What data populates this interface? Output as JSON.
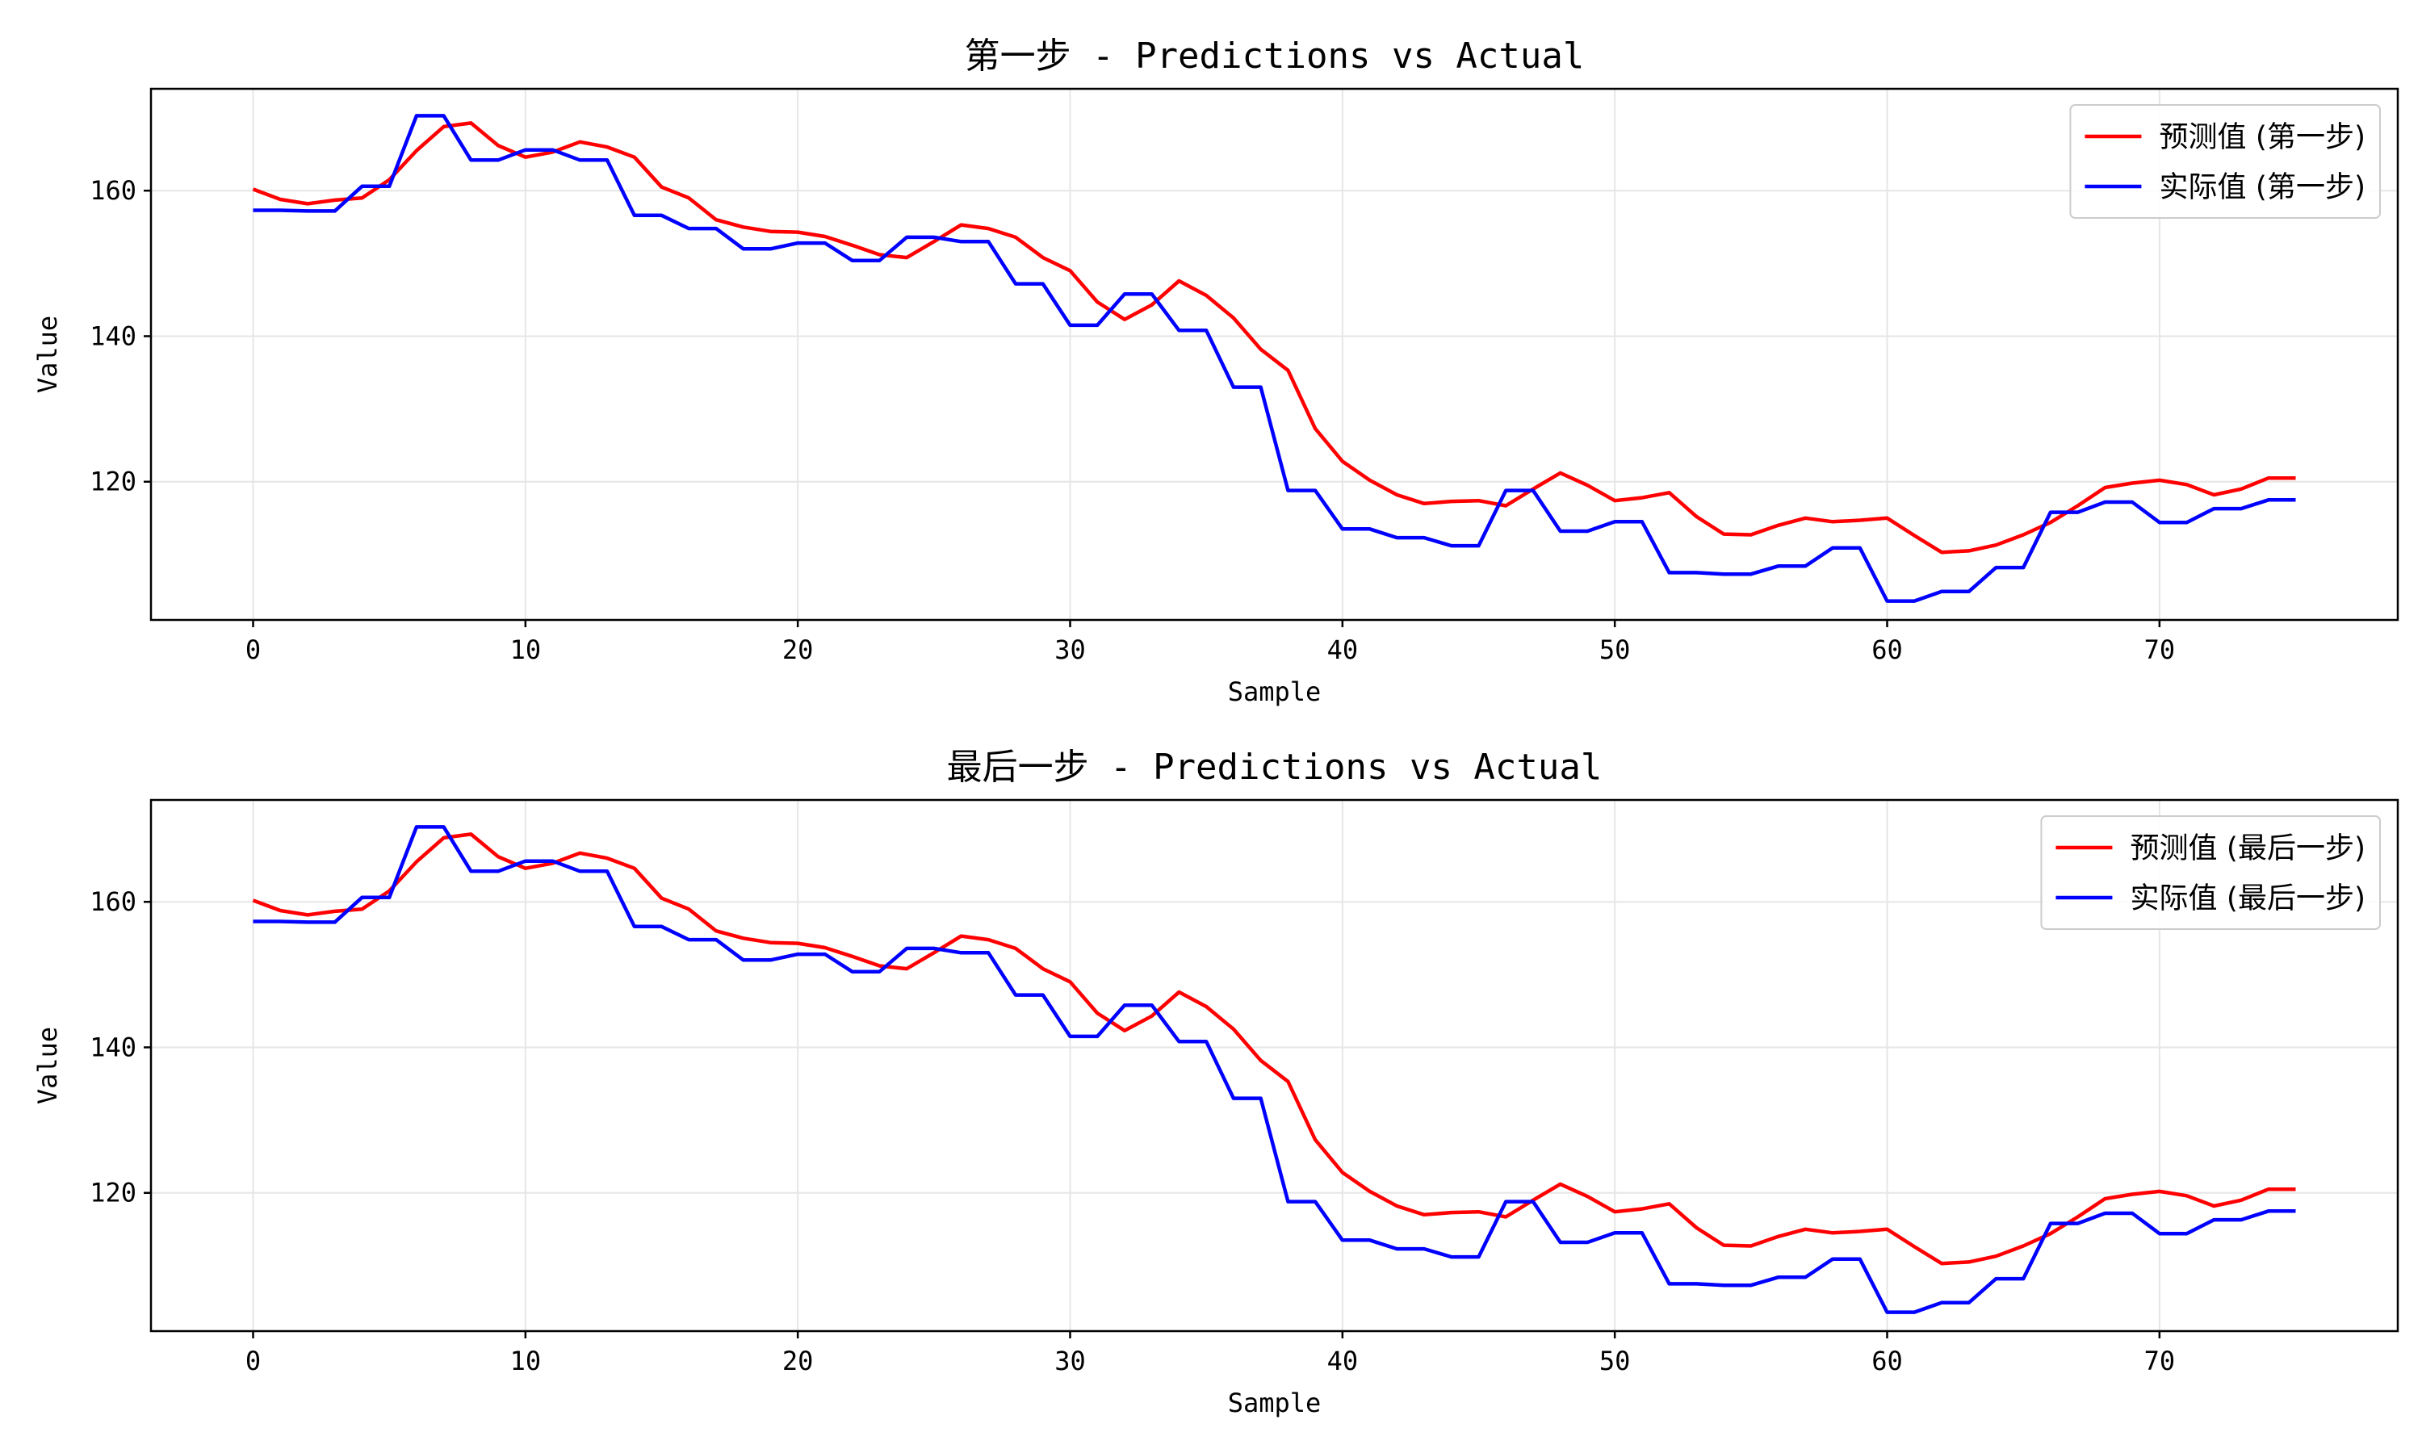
{
  "chart_data": [
    {
      "type": "line",
      "title": "第一步 - Predictions vs Actual",
      "xlabel": "Sample",
      "ylabel": "Value",
      "xlim": [
        -3.75,
        78.75
      ],
      "ylim": [
        101,
        174
      ],
      "xticks": [
        0,
        10,
        20,
        30,
        40,
        50,
        60,
        70
      ],
      "yticks": [
        120,
        140,
        160
      ],
      "grid": true,
      "legend_position": "top-right",
      "x": [
        0,
        1,
        2,
        3,
        4,
        5,
        6,
        7,
        8,
        9,
        10,
        11,
        12,
        13,
        14,
        15,
        16,
        17,
        18,
        19,
        20,
        21,
        22,
        23,
        24,
        25,
        26,
        27,
        28,
        29,
        30,
        31,
        32,
        33,
        34,
        35,
        36,
        37,
        38,
        39,
        40,
        41,
        42,
        43,
        44,
        45,
        46,
        47,
        48,
        49,
        50,
        51,
        52,
        53,
        54,
        55,
        56,
        57,
        58,
        59,
        60,
        61,
        62,
        63,
        64,
        65,
        66,
        67,
        68,
        69,
        70,
        71,
        72,
        73,
        74,
        75
      ],
      "series": [
        {
          "name": "预测值 (第一步)",
          "color": "#ff0000",
          "values": [
            160.2,
            158.8,
            158.2,
            158.7,
            159.0,
            161.5,
            165.5,
            168.8,
            169.3,
            166.2,
            164.6,
            165.3,
            166.7,
            166.0,
            164.6,
            160.5,
            159.0,
            156.0,
            155.0,
            154.4,
            154.3,
            153.7,
            152.5,
            151.2,
            150.8,
            153.0,
            155.3,
            154.8,
            153.6,
            150.8,
            149.0,
            144.7,
            142.3,
            144.3,
            147.6,
            145.6,
            142.5,
            138.2,
            135.3,
            127.3,
            122.8,
            120.2,
            118.2,
            117.0,
            117.3,
            117.4,
            116.7,
            119.0,
            121.2,
            119.5,
            117.4,
            117.8,
            118.5,
            115.2,
            112.8,
            112.7,
            114.0,
            115.0,
            114.5,
            114.7,
            115.0,
            112.6,
            110.3,
            110.5,
            111.3,
            112.7,
            114.4,
            116.7,
            119.2,
            119.8,
            120.2,
            119.6,
            118.2,
            119.0,
            120.5,
            120.5
          ]
        },
        {
          "name": "实际值 (第一步)",
          "color": "#0000ff",
          "values": [
            157.3,
            157.3,
            157.2,
            157.2,
            160.6,
            160.6,
            170.3,
            170.3,
            164.2,
            164.2,
            165.6,
            165.6,
            164.2,
            164.2,
            156.6,
            156.6,
            154.8,
            154.8,
            152.0,
            152.0,
            152.8,
            152.8,
            150.4,
            150.4,
            153.6,
            153.6,
            153.0,
            153.0,
            147.2,
            147.2,
            141.5,
            141.5,
            145.8,
            145.8,
            140.8,
            140.8,
            133.0,
            133.0,
            118.8,
            118.8,
            113.5,
            113.5,
            112.3,
            112.3,
            111.2,
            111.2,
            118.8,
            118.8,
            113.2,
            113.2,
            114.5,
            114.5,
            107.5,
            107.5,
            107.3,
            107.3,
            108.4,
            108.4,
            110.9,
            110.9,
            103.6,
            103.6,
            104.9,
            104.9,
            108.2,
            108.2,
            115.8,
            115.8,
            117.2,
            117.2,
            114.4,
            114.4,
            116.3,
            116.3,
            117.5,
            117.5
          ]
        }
      ]
    },
    {
      "type": "line",
      "title": "最后一步 - Predictions vs Actual",
      "xlabel": "Sample",
      "ylabel": "Value",
      "xlim": [
        -3.75,
        78.75
      ],
      "ylim": [
        101,
        174
      ],
      "xticks": [
        0,
        10,
        20,
        30,
        40,
        50,
        60,
        70
      ],
      "yticks": [
        120,
        140,
        160
      ],
      "grid": true,
      "legend_position": "top-right",
      "x": [
        0,
        1,
        2,
        3,
        4,
        5,
        6,
        7,
        8,
        9,
        10,
        11,
        12,
        13,
        14,
        15,
        16,
        17,
        18,
        19,
        20,
        21,
        22,
        23,
        24,
        25,
        26,
        27,
        28,
        29,
        30,
        31,
        32,
        33,
        34,
        35,
        36,
        37,
        38,
        39,
        40,
        41,
        42,
        43,
        44,
        45,
        46,
        47,
        48,
        49,
        50,
        51,
        52,
        53,
        54,
        55,
        56,
        57,
        58,
        59,
        60,
        61,
        62,
        63,
        64,
        65,
        66,
        67,
        68,
        69,
        70,
        71,
        72,
        73,
        74,
        75
      ],
      "series": [
        {
          "name": "预测值 (最后一步)",
          "color": "#ff0000",
          "values": [
            160.2,
            158.8,
            158.2,
            158.7,
            159.0,
            161.5,
            165.5,
            168.8,
            169.3,
            166.2,
            164.6,
            165.3,
            166.7,
            166.0,
            164.6,
            160.5,
            159.0,
            156.0,
            155.0,
            154.4,
            154.3,
            153.7,
            152.5,
            151.2,
            150.8,
            153.0,
            155.3,
            154.8,
            153.6,
            150.8,
            149.0,
            144.7,
            142.3,
            144.3,
            147.6,
            145.6,
            142.5,
            138.2,
            135.3,
            127.3,
            122.8,
            120.2,
            118.2,
            117.0,
            117.3,
            117.4,
            116.7,
            119.0,
            121.2,
            119.5,
            117.4,
            117.8,
            118.5,
            115.2,
            112.8,
            112.7,
            114.0,
            115.0,
            114.5,
            114.7,
            115.0,
            112.6,
            110.3,
            110.5,
            111.3,
            112.7,
            114.4,
            116.7,
            119.2,
            119.8,
            120.2,
            119.6,
            118.2,
            119.0,
            120.5,
            120.5
          ]
        },
        {
          "name": "实际值 (最后一步)",
          "color": "#0000ff",
          "values": [
            157.3,
            157.3,
            157.2,
            157.2,
            160.6,
            160.6,
            170.3,
            170.3,
            164.2,
            164.2,
            165.6,
            165.6,
            164.2,
            164.2,
            156.6,
            156.6,
            154.8,
            154.8,
            152.0,
            152.0,
            152.8,
            152.8,
            150.4,
            150.4,
            153.6,
            153.6,
            153.0,
            153.0,
            147.2,
            147.2,
            141.5,
            141.5,
            145.8,
            145.8,
            140.8,
            140.8,
            133.0,
            133.0,
            118.8,
            118.8,
            113.5,
            113.5,
            112.3,
            112.3,
            111.2,
            111.2,
            118.8,
            118.8,
            113.2,
            113.2,
            114.5,
            114.5,
            107.5,
            107.5,
            107.3,
            107.3,
            108.4,
            108.4,
            110.9,
            110.9,
            103.6,
            103.6,
            104.9,
            104.9,
            108.2,
            108.2,
            115.8,
            115.8,
            117.2,
            117.2,
            114.4,
            114.4,
            116.3,
            116.3,
            117.5,
            117.5
          ]
        }
      ]
    }
  ]
}
